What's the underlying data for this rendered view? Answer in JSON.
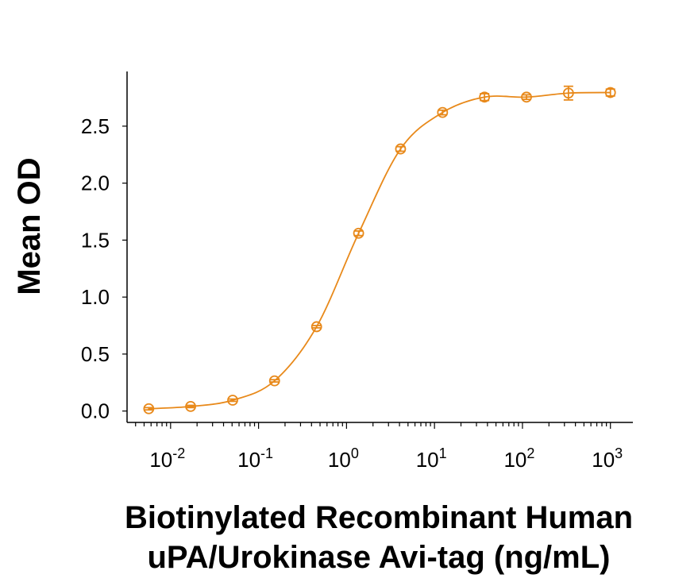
{
  "chart_data": {
    "type": "scatter",
    "xlabel": [
      "Biotinylated Recombinant Human",
      "uPA/Urokinase Avi-tag (ng/mL)"
    ],
    "ylabel": "Mean OD",
    "x_scale": "log",
    "xlim": [
      0.0032,
      1800
    ],
    "ylim": [
      -0.1,
      2.98
    ],
    "x_ticks": [
      {
        "base": "10",
        "exp": "-2",
        "value": 0.01
      },
      {
        "base": "10",
        "exp": "-1",
        "value": 0.1
      },
      {
        "base": "10",
        "exp": "0",
        "value": 1
      },
      {
        "base": "10",
        "exp": "1",
        "value": 10
      },
      {
        "base": "10",
        "exp": "2",
        "value": 100
      },
      {
        "base": "10",
        "exp": "3",
        "value": 1000
      }
    ],
    "y_ticks": [
      "0.0",
      "0.5",
      "1.0",
      "1.5",
      "2.0",
      "2.5"
    ],
    "grid": false,
    "color": "#E8891A",
    "marker": "open-circle",
    "error_bars": true,
    "fit": "sigmoid curve",
    "x": [
      0.00565,
      0.0169,
      0.0508,
      0.152,
      0.457,
      1.372,
      4.115,
      12.35,
      37.04,
      111.1,
      333.3,
      1000
    ],
    "y": [
      0.02,
      0.04,
      0.095,
      0.265,
      0.74,
      1.56,
      2.3,
      2.62,
      2.755,
      2.755,
      2.79,
      2.795
    ],
    "y_err": [
      0.01,
      0.01,
      0.01,
      0.01,
      0.01,
      0.02,
      0.02,
      0.02,
      0.03,
      0.02,
      0.06,
      0.03
    ]
  }
}
